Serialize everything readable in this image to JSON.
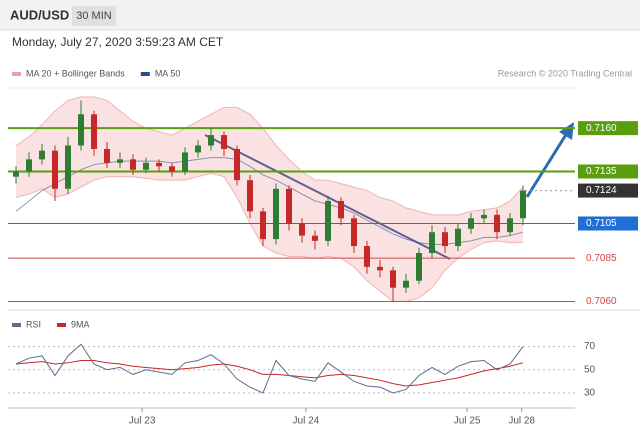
{
  "header": {
    "symbol": "AUD/USD",
    "timeframe": "30 MIN",
    "timestamp": "Monday, July 27, 2020 3:59:23 AM CET"
  },
  "chart_data": {
    "type": "candlestick",
    "legend": [
      {
        "name": "MA 20 + Bollinger Bands",
        "color": "#e8a0a0"
      },
      {
        "name": "MA 50",
        "color": "#2a4d8f"
      }
    ],
    "credit": "Research © 2020 Trading Central",
    "ylim": [
      0.7058,
      0.7182
    ],
    "up_color": "#2e7d32",
    "down_color": "#c62828",
    "open": [
      0.7132,
      0.7135,
      0.7142,
      0.7147,
      0.7125,
      0.715,
      0.7168,
      0.7148,
      0.714,
      0.7142,
      0.7136,
      0.714,
      0.7138,
      0.7135,
      0.7146,
      0.715,
      0.7156,
      0.7148,
      0.713,
      0.7112,
      0.7096,
      0.7125,
      0.7105,
      0.7098,
      0.7095,
      0.7118,
      0.7108,
      0.7092,
      0.708,
      0.7078,
      0.7068,
      0.7072,
      0.7088,
      0.71,
      0.7092,
      0.7102,
      0.7108,
      0.711,
      0.71,
      0.7108
    ],
    "high": [
      0.7138,
      0.7146,
      0.7151,
      0.715,
      0.7155,
      0.7176,
      0.717,
      0.7152,
      0.7146,
      0.7145,
      0.7143,
      0.7142,
      0.714,
      0.7149,
      0.7153,
      0.716,
      0.7158,
      0.715,
      0.7133,
      0.7114,
      0.7128,
      0.7127,
      0.7108,
      0.7101,
      0.7121,
      0.712,
      0.711,
      0.7095,
      0.7084,
      0.708,
      0.7076,
      0.7091,
      0.7104,
      0.7103,
      0.7105,
      0.7111,
      0.7113,
      0.7113,
      0.7111,
      0.7127
    ],
    "low": [
      0.7128,
      0.7132,
      0.7139,
      0.7118,
      0.7122,
      0.7147,
      0.7144,
      0.7137,
      0.7137,
      0.7133,
      0.7134,
      0.7135,
      0.7132,
      0.7133,
      0.7143,
      0.7147,
      0.7144,
      0.7127,
      0.7108,
      0.7092,
      0.7093,
      0.7101,
      0.7094,
      0.709,
      0.7092,
      0.7104,
      0.7088,
      0.7076,
      0.7074,
      0.706,
      0.7065,
      0.707,
      0.7085,
      0.7088,
      0.7089,
      0.7099,
      0.7105,
      0.7096,
      0.7098,
      0.7104
    ],
    "close": [
      0.7135,
      0.7142,
      0.7147,
      0.7125,
      0.715,
      0.7168,
      0.7148,
      0.714,
      0.7142,
      0.7136,
      0.714,
      0.7138,
      0.7135,
      0.7146,
      0.715,
      0.7156,
      0.7148,
      0.713,
      0.7112,
      0.7096,
      0.7125,
      0.7105,
      0.7098,
      0.7095,
      0.7118,
      0.7108,
      0.7092,
      0.708,
      0.7078,
      0.7068,
      0.7072,
      0.7088,
      0.71,
      0.7092,
      0.7102,
      0.7108,
      0.711,
      0.71,
      0.7108,
      0.7124
    ],
    "bollinger_upper": [
      0.715,
      0.7155,
      0.7162,
      0.717,
      0.7176,
      0.7178,
      0.7178,
      0.7176,
      0.717,
      0.7164,
      0.716,
      0.7158,
      0.7156,
      0.716,
      0.7164,
      0.7168,
      0.7172,
      0.7172,
      0.7168,
      0.716,
      0.715,
      0.7142,
      0.7135,
      0.713,
      0.713,
      0.7128,
      0.7126,
      0.7124,
      0.712,
      0.7118,
      0.7114,
      0.7112,
      0.711,
      0.711,
      0.711,
      0.7112,
      0.7113,
      0.7114,
      0.7118,
      0.7126
    ],
    "bollinger_lower": [
      0.712,
      0.7122,
      0.7125,
      0.712,
      0.7122,
      0.7126,
      0.713,
      0.7132,
      0.7132,
      0.7132,
      0.7131,
      0.713,
      0.713,
      0.713,
      0.7132,
      0.7134,
      0.7132,
      0.712,
      0.7105,
      0.7092,
      0.7088,
      0.7086,
      0.7086,
      0.7085,
      0.7086,
      0.7085,
      0.708,
      0.7072,
      0.7066,
      0.706,
      0.706,
      0.7062,
      0.7068,
      0.7078,
      0.7085,
      0.709,
      0.7094,
      0.7095,
      0.7094,
      0.7094
    ],
    "ma50": [
      0.7112,
      0.7118,
      0.7124,
      0.7128,
      0.7132,
      0.7136,
      0.7139,
      0.714,
      0.7141,
      0.7141,
      0.7141,
      0.7141,
      0.714,
      0.7141,
      0.7142,
      0.7143,
      0.7143,
      0.7142,
      0.7138,
      0.7133,
      0.713,
      0.7126,
      0.7122,
      0.7118,
      0.7116,
      0.7114,
      0.7111,
      0.7107,
      0.7103,
      0.7099,
      0.7096,
      0.7094,
      0.7093,
      0.7093,
      0.7094,
      0.7095,
      0.7097,
      0.7097,
      0.7098,
      0.71
    ],
    "levels": [
      {
        "value": 0.716,
        "label": "0.7160",
        "color": "#5a9e0f",
        "style": "box"
      },
      {
        "value": 0.7135,
        "label": "0.7135",
        "color": "#5a9e0f",
        "style": "box"
      },
      {
        "value": 0.7124,
        "label": "0.7124",
        "color": "#333333",
        "style": "current"
      },
      {
        "value": 0.7105,
        "label": "0.7105",
        "color": "#1f6fd6",
        "style": "box"
      },
      {
        "value": 0.7085,
        "label": "0.7085",
        "color": "#d24444",
        "style": "text"
      },
      {
        "value": 0.706,
        "label": "0.7060",
        "color": "#d24444",
        "style": "text"
      }
    ],
    "xticks": [
      {
        "value": 9.7,
        "label": "Jul 23"
      },
      {
        "value": 22.3,
        "label": "Jul 24"
      },
      {
        "value": 34.7,
        "label": "Jul 25"
      },
      {
        "value": 38.9,
        "label": "Jul 28"
      }
    ],
    "rsi": {
      "legend": [
        {
          "name": "RSI",
          "color": "#5b6e8c"
        },
        {
          "name": "9MA",
          "color": "#c62828"
        }
      ],
      "ylim": [
        17,
        80
      ],
      "yticks": [
        70,
        50,
        30
      ],
      "values": [
        55,
        60,
        62,
        45,
        62,
        72,
        55,
        50,
        52,
        46,
        50,
        48,
        46,
        56,
        58,
        63,
        55,
        42,
        35,
        30,
        58,
        45,
        42,
        40,
        56,
        48,
        40,
        36,
        35,
        30,
        33,
        45,
        52,
        46,
        53,
        57,
        58,
        50,
        55,
        70
      ],
      "ma": [
        55,
        56,
        57,
        55,
        56,
        58,
        58,
        56,
        55,
        53,
        52,
        51,
        50,
        51,
        52,
        54,
        55,
        53,
        50,
        46,
        46,
        45,
        44,
        43,
        45,
        46,
        45,
        43,
        41,
        38,
        36,
        37,
        39,
        41,
        43,
        46,
        49,
        51,
        53,
        56
      ]
    }
  }
}
